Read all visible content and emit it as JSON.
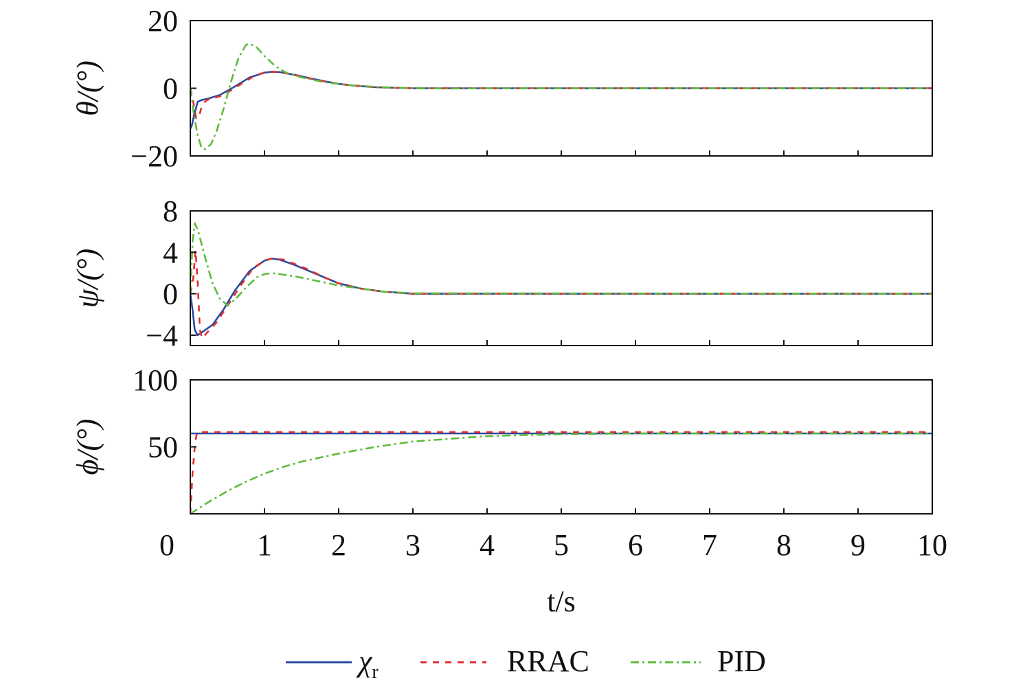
{
  "chart_data": [
    {
      "type": "line",
      "ylabel": "θ/(°)",
      "ylim": [
        -20,
        20
      ],
      "yticks": [
        "20",
        "0",
        "−20"
      ],
      "ytick_values": [
        20,
        0,
        -20
      ],
      "xlim": [
        0,
        10
      ],
      "grid": false,
      "series": [
        {
          "key": "chi",
          "color": "#2b4aa0",
          "dash": "none",
          "points": [
            [
              0,
              -12
            ],
            [
              0.02,
              -11
            ],
            [
              0.05,
              -8
            ],
            [
              0.1,
              -4
            ],
            [
              0.15,
              -3.5
            ],
            [
              0.25,
              -3
            ],
            [
              0.4,
              -2
            ],
            [
              0.6,
              0.5
            ],
            [
              0.8,
              3.2
            ],
            [
              1.0,
              4.6
            ],
            [
              1.1,
              4.9
            ],
            [
              1.2,
              4.8
            ],
            [
              1.4,
              4.0
            ],
            [
              1.6,
              3.0
            ],
            [
              1.8,
              2.1
            ],
            [
              2.0,
              1.3
            ],
            [
              2.2,
              0.8
            ],
            [
              2.5,
              0.3
            ],
            [
              3.0,
              0
            ],
            [
              4,
              0
            ],
            [
              10,
              0
            ]
          ]
        },
        {
          "key": "rrac",
          "color": "#e02d2d",
          "dash": "9,9",
          "points": [
            [
              0,
              0
            ],
            [
              0.04,
              -4
            ],
            [
              0.08,
              -9
            ],
            [
              0.12,
              -8
            ],
            [
              0.16,
              -5
            ],
            [
              0.22,
              -3.5
            ],
            [
              0.3,
              -3
            ],
            [
              0.45,
              -2
            ],
            [
              0.65,
              0.8
            ],
            [
              0.85,
              3.5
            ],
            [
              1.0,
              4.7
            ],
            [
              1.1,
              4.9
            ],
            [
              1.2,
              4.8
            ],
            [
              1.4,
              4.0
            ],
            [
              1.6,
              3.0
            ],
            [
              1.8,
              2.1
            ],
            [
              2.0,
              1.3
            ],
            [
              2.2,
              0.8
            ],
            [
              2.5,
              0.3
            ],
            [
              3.0,
              0
            ],
            [
              4,
              0
            ],
            [
              10,
              0
            ]
          ]
        },
        {
          "key": "pid",
          "color": "#5dbb3c",
          "dash": "12,5,3,5",
          "points": [
            [
              0,
              0
            ],
            [
              0.05,
              -8
            ],
            [
              0.1,
              -14
            ],
            [
              0.15,
              -17.5
            ],
            [
              0.2,
              -18
            ],
            [
              0.28,
              -16.5
            ],
            [
              0.35,
              -13
            ],
            [
              0.45,
              -6
            ],
            [
              0.55,
              2
            ],
            [
              0.65,
              9
            ],
            [
              0.75,
              12.8
            ],
            [
              0.8,
              13.2
            ],
            [
              0.9,
              12
            ],
            [
              1.0,
              9.5
            ],
            [
              1.15,
              6.5
            ],
            [
              1.3,
              4.5
            ],
            [
              1.5,
              3.2
            ],
            [
              1.8,
              1.8
            ],
            [
              2.1,
              1.0
            ],
            [
              2.5,
              0.4
            ],
            [
              3.0,
              0.05
            ],
            [
              3.5,
              -0.1
            ],
            [
              4,
              0
            ],
            [
              10,
              0
            ]
          ]
        }
      ]
    },
    {
      "type": "line",
      "ylabel": "ψ/(°)",
      "ylim": [
        -5,
        8
      ],
      "yticks": [
        "8",
        "4",
        "0",
        "−4"
      ],
      "ytick_values": [
        8,
        4,
        0,
        -4
      ],
      "xlim": [
        0,
        10
      ],
      "grid": false,
      "series": [
        {
          "key": "chi",
          "color": "#2b4aa0",
          "dash": "none",
          "points": [
            [
              0,
              0
            ],
            [
              0.03,
              -1.5
            ],
            [
              0.06,
              -3.5
            ],
            [
              0.1,
              -4
            ],
            [
              0.2,
              -3.5
            ],
            [
              0.3,
              -3
            ],
            [
              0.45,
              -1.5
            ],
            [
              0.6,
              0.3
            ],
            [
              0.8,
              2.2
            ],
            [
              1.0,
              3.2
            ],
            [
              1.1,
              3.4
            ],
            [
              1.2,
              3.3
            ],
            [
              1.4,
              2.8
            ],
            [
              1.6,
              2.2
            ],
            [
              1.8,
              1.6
            ],
            [
              2.0,
              1.0
            ],
            [
              2.3,
              0.5
            ],
            [
              2.6,
              0.2
            ],
            [
              3.0,
              0
            ],
            [
              10,
              0
            ]
          ]
        },
        {
          "key": "rrac",
          "color": "#e02d2d",
          "dash": "9,9",
          "points": [
            [
              0,
              0
            ],
            [
              0.04,
              1.5
            ],
            [
              0.07,
              4.2
            ],
            [
              0.1,
              1
            ],
            [
              0.13,
              -3.5
            ],
            [
              0.16,
              -4.3
            ],
            [
              0.22,
              -3.8
            ],
            [
              0.35,
              -2.8
            ],
            [
              0.5,
              -1.2
            ],
            [
              0.65,
              0.5
            ],
            [
              0.85,
              2.5
            ],
            [
              1.0,
              3.2
            ],
            [
              1.1,
              3.4
            ],
            [
              1.25,
              3.3
            ],
            [
              1.4,
              2.9
            ],
            [
              1.6,
              2.3
            ],
            [
              1.8,
              1.6
            ],
            [
              2.0,
              1.0
            ],
            [
              2.3,
              0.5
            ],
            [
              2.6,
              0.2
            ],
            [
              3.0,
              0
            ],
            [
              10,
              0
            ]
          ]
        },
        {
          "key": "pid",
          "color": "#5dbb3c",
          "dash": "12,5,3,5",
          "points": [
            [
              0,
              0
            ],
            [
              0.03,
              5
            ],
            [
              0.06,
              6.8
            ],
            [
              0.1,
              6.2
            ],
            [
              0.2,
              3.5
            ],
            [
              0.3,
              1.0
            ],
            [
              0.4,
              -0.5
            ],
            [
              0.5,
              -1.1
            ],
            [
              0.6,
              -0.6
            ],
            [
              0.75,
              0.6
            ],
            [
              0.9,
              1.6
            ],
            [
              1.0,
              1.9
            ],
            [
              1.1,
              2.0
            ],
            [
              1.2,
              1.9
            ],
            [
              1.4,
              1.7
            ],
            [
              1.6,
              1.4
            ],
            [
              1.8,
              1.1
            ],
            [
              2.0,
              0.8
            ],
            [
              2.3,
              0.5
            ],
            [
              2.6,
              0.2
            ],
            [
              3.0,
              0.05
            ],
            [
              10,
              0
            ]
          ]
        }
      ]
    },
    {
      "type": "line",
      "ylabel": "ϕ/(°)",
      "ylim": [
        0,
        100
      ],
      "yticks": [
        "100",
        "50"
      ],
      "ytick_values": [
        100,
        50
      ],
      "xlim": [
        0,
        10
      ],
      "xlabel": "t/s",
      "xticks": [
        "0",
        "1",
        "2",
        "3",
        "4",
        "5",
        "6",
        "7",
        "8",
        "9",
        "10"
      ],
      "grid": false,
      "series": [
        {
          "key": "chi",
          "color": "#2b4aa0",
          "dash": "none",
          "points": [
            [
              0,
              60
            ],
            [
              10,
              60
            ]
          ]
        },
        {
          "key": "rrac",
          "color": "#e02d2d",
          "dash": "9,9",
          "points": [
            [
              0,
              0
            ],
            [
              0.03,
              30
            ],
            [
              0.06,
              50
            ],
            [
              0.08,
              58
            ],
            [
              0.1,
              61
            ],
            [
              10,
              61
            ]
          ]
        },
        {
          "key": "pid",
          "color": "#5dbb3c",
          "dash": "12,5,3,5",
          "points": [
            [
              0,
              0
            ],
            [
              0.25,
              9
            ],
            [
              0.5,
              17
            ],
            [
              0.75,
              24
            ],
            [
              1.0,
              30
            ],
            [
              1.25,
              35
            ],
            [
              1.5,
              39
            ],
            [
              1.75,
              42
            ],
            [
              2.0,
              45
            ],
            [
              2.5,
              50
            ],
            [
              3.0,
              54
            ],
            [
              3.5,
              56
            ],
            [
              4.0,
              58
            ],
            [
              5.0,
              59.5
            ],
            [
              6.0,
              60
            ],
            [
              10,
              60
            ]
          ]
        }
      ]
    }
  ],
  "legend": {
    "items": [
      {
        "key": "chi",
        "label": "χ",
        "sub": "r",
        "color": "#2b4aa0",
        "dash": "none"
      },
      {
        "key": "rrac",
        "label": "RRAC",
        "color": "#e02d2d",
        "dash": "9,9"
      },
      {
        "key": "pid",
        "label": "PID",
        "color": "#5dbb3c",
        "dash": "12,5,3,5"
      }
    ]
  }
}
